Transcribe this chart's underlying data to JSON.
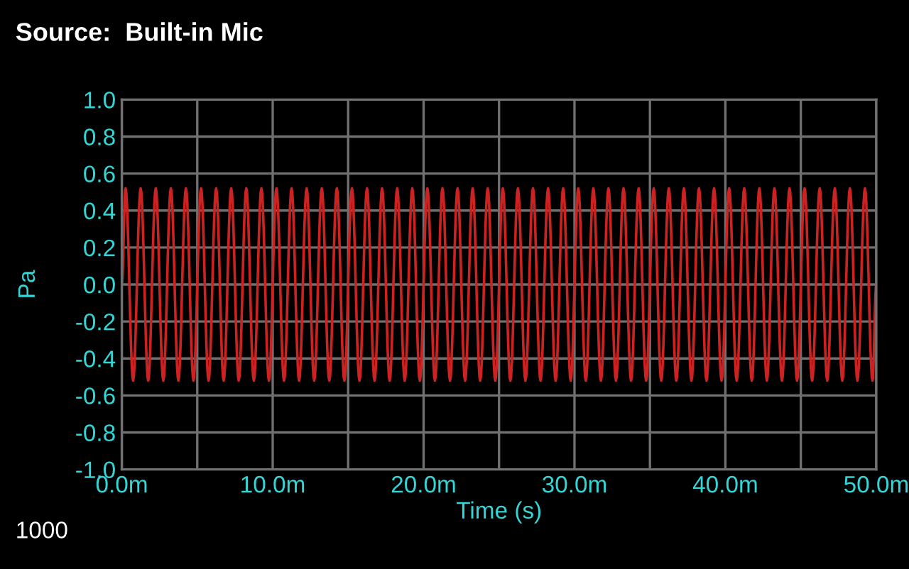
{
  "chart_data": {
    "type": "line",
    "title": "Source:  Built-in Mic",
    "xlabel": "Time (s)",
    "ylabel": "Pa",
    "annotations": [
      "1000"
    ],
    "xlim": [
      0,
      50
    ],
    "ylim": [
      -1.0,
      1.0
    ],
    "xticks": [
      {
        "value": 0,
        "label": "0.0m"
      },
      {
        "value": 5,
        "label": null
      },
      {
        "value": 10,
        "label": "10.0m"
      },
      {
        "value": 15,
        "label": null
      },
      {
        "value": 20,
        "label": "20.0m"
      },
      {
        "value": 25,
        "label": null
      },
      {
        "value": 30,
        "label": "30.0m"
      },
      {
        "value": 35,
        "label": null
      },
      {
        "value": 40,
        "label": "40.0m"
      },
      {
        "value": 45,
        "label": null
      },
      {
        "value": 50,
        "label": "50.0m"
      }
    ],
    "yticks": [
      {
        "value": -1.0,
        "label": "-1.0"
      },
      {
        "value": -0.8,
        "label": "-0.8"
      },
      {
        "value": -0.6,
        "label": "-0.6"
      },
      {
        "value": -0.4,
        "label": "-0.4"
      },
      {
        "value": -0.2,
        "label": "-0.2"
      },
      {
        "value": 0.0,
        "label": "0.0"
      },
      {
        "value": 0.2,
        "label": "0.2"
      },
      {
        "value": 0.4,
        "label": "0.4"
      },
      {
        "value": 0.6,
        "label": "0.6"
      },
      {
        "value": 0.8,
        "label": "0.8"
      },
      {
        "value": 1.0,
        "label": "1.0"
      }
    ],
    "grid": true,
    "marker": "none",
    "line_style": "solid",
    "series": [
      {
        "color": "#cc2222",
        "x": [
          0,
          0.25,
          0.75,
          1.25,
          1.75,
          2.25,
          2.75,
          3.25,
          3.75,
          4.25,
          4.75,
          5.25,
          5.75,
          6.25,
          6.75,
          7.25,
          7.75,
          8.25,
          8.75,
          9.25,
          9.75,
          10.25,
          10.75,
          11.25,
          11.75,
          12.25,
          12.75,
          13.25,
          13.75,
          14.25,
          14.75,
          15.25,
          15.75,
          16.25,
          16.75,
          17.25,
          17.75,
          18.25,
          18.75,
          19.25,
          19.75,
          20.25,
          20.75,
          21.25,
          21.75,
          22.25,
          22.75,
          23.25,
          23.75,
          24.25,
          24.75,
          25.25,
          25.75,
          26.25,
          26.75,
          27.25,
          27.75,
          28.25,
          28.75,
          29.25,
          29.75,
          30.25,
          30.75,
          31.25,
          31.75,
          32.25,
          32.75,
          33.25,
          33.75,
          34.25,
          34.75,
          35.25,
          35.75,
          36.25,
          36.75,
          37.25,
          37.75,
          38.25,
          38.75,
          39.25,
          39.75,
          40.25,
          40.75,
          41.25,
          41.75,
          42.25,
          42.75,
          43.25,
          43.75,
          44.25,
          44.75,
          45.25,
          45.75,
          46.25,
          46.75,
          47.25,
          47.75,
          48.25,
          48.75,
          49.25,
          49.75,
          50
        ],
        "values": [
          0,
          0.52,
          -0.52,
          0.52,
          -0.52,
          0.52,
          -0.52,
          0.52,
          -0.52,
          0.52,
          -0.52,
          0.52,
          -0.52,
          0.52,
          -0.52,
          0.52,
          -0.52,
          0.52,
          -0.52,
          0.52,
          -0.52,
          0.52,
          -0.52,
          0.52,
          -0.52,
          0.52,
          -0.52,
          0.52,
          -0.52,
          0.52,
          -0.52,
          0.52,
          -0.52,
          0.52,
          -0.52,
          0.52,
          -0.52,
          0.52,
          -0.52,
          0.52,
          -0.52,
          0.52,
          -0.52,
          0.52,
          -0.52,
          0.52,
          -0.52,
          0.52,
          -0.52,
          0.52,
          -0.52,
          0.52,
          -0.52,
          0.52,
          -0.52,
          0.52,
          -0.52,
          0.52,
          -0.52,
          0.52,
          -0.52,
          0.52,
          -0.52,
          0.52,
          -0.52,
          0.52,
          -0.52,
          0.52,
          -0.52,
          0.52,
          -0.52,
          0.52,
          -0.52,
          0.52,
          -0.52,
          0.52,
          -0.52,
          0.52,
          -0.52,
          0.52,
          -0.52,
          0.52,
          -0.52,
          0.52,
          -0.52,
          0.52,
          -0.52,
          0.52,
          -0.52,
          0.52,
          -0.52,
          0.52,
          -0.52,
          0.52,
          -0.52,
          0.52,
          -0.52,
          0.52,
          -0.52,
          0.52,
          -0.52,
          0
        ]
      }
    ]
  }
}
